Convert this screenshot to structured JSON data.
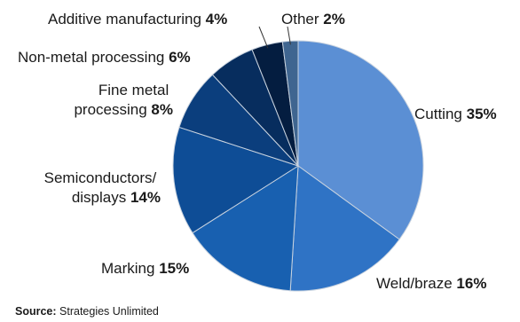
{
  "chart_data": {
    "type": "pie",
    "title": "",
    "slices": [
      {
        "label": "Cutting",
        "value": 35,
        "value_label": "35%",
        "color": "#5b8fd4"
      },
      {
        "label": "Weld/braze",
        "value": 16,
        "value_label": "16%",
        "color": "#2f73c5"
      },
      {
        "label": "Marking",
        "value": 15,
        "value_label": "15%",
        "color": "#1860b0"
      },
      {
        "label": "Semiconductors/ displays",
        "label_lines": [
          "Semiconductors/",
          "displays"
        ],
        "value": 14,
        "value_label": "14%",
        "color": "#0e4d96"
      },
      {
        "label": "Fine metal processing",
        "label_lines": [
          "Fine metal",
          "processing"
        ],
        "value": 8,
        "value_label": "8%",
        "color": "#0b3e7d"
      },
      {
        "label": "Non-metal processing",
        "value": 6,
        "value_label": "6%",
        "color": "#072d5e"
      },
      {
        "label": "Additive manufacturing",
        "value": 4,
        "value_label": "4%",
        "color": "#041d40"
      },
      {
        "label": "Other",
        "value": 2,
        "value_label": "2%",
        "color": "#3f6590"
      }
    ],
    "start_angle": "12 o'clock",
    "direction": "clockwise",
    "legend": "none"
  },
  "source": {
    "prefix": "Source:",
    "text": "Strategies Unlimited"
  }
}
